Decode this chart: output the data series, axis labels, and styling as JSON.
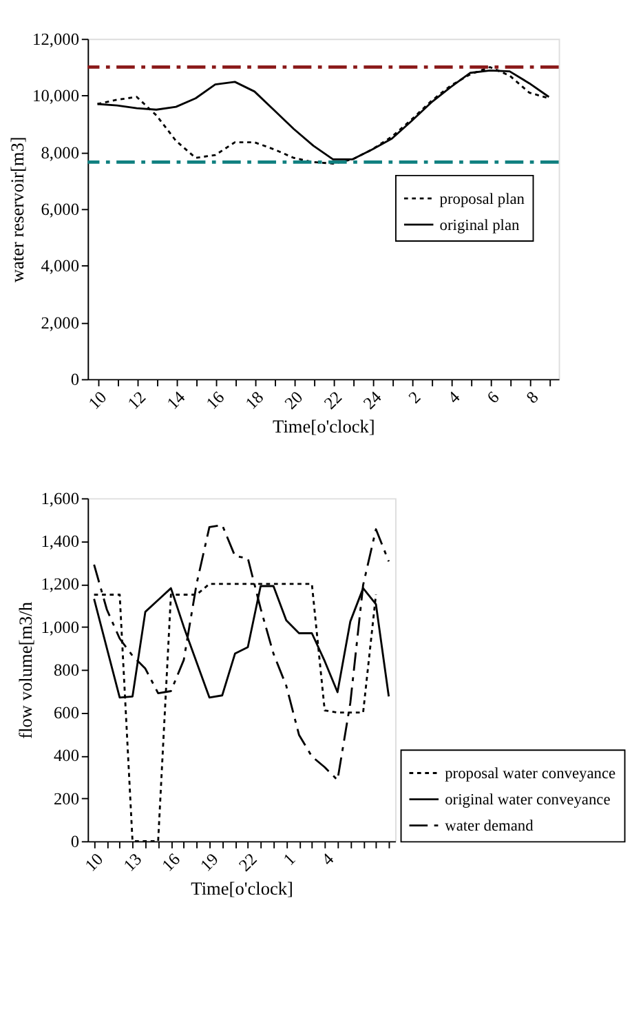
{
  "chart_data": [
    {
      "type": "line",
      "xlabel": "Time[o'clock]",
      "ylabel": "water reservoir[m3]",
      "categories": [
        "10",
        null,
        "12",
        null,
        "14",
        null,
        "16",
        null,
        "18",
        null,
        "20",
        null,
        "22",
        null,
        "24",
        null,
        "2",
        null,
        "4",
        null,
        "6",
        null,
        "8",
        null
      ],
      "series": [
        {
          "name": "proposal plan",
          "color": "#000000",
          "line_style": "dotted",
          "values": [
            9700,
            9850,
            9950,
            9300,
            8400,
            7800,
            7900,
            8350,
            8350,
            8100,
            7800,
            7650,
            7600,
            7750,
            8100,
            8550,
            9150,
            9800,
            10350,
            10750,
            11000,
            10700,
            10100,
            9900
          ]
        },
        {
          "name": "original plan",
          "color": "#000000",
          "line_style": "solid",
          "values": [
            9700,
            9650,
            9550,
            9500,
            9600,
            9900,
            10390,
            10480,
            10140,
            9480,
            8820,
            8230,
            7750,
            7750,
            8100,
            8480,
            9100,
            9750,
            10300,
            10800,
            10880,
            10850,
            10430,
            9950
          ]
        }
      ],
      "ref_lines": [
        {
          "axis": "y",
          "value": 11000,
          "color": "#8b1a1a",
          "line_style": "dashed"
        },
        {
          "axis": "y",
          "value": 7650,
          "color": "#108080",
          "line_style": "dashed"
        }
      ],
      "ylim": [
        0,
        12000
      ],
      "yticks": [
        0,
        {
          "value": 2000,
          "label": "2,000"
        },
        {
          "value": 4000,
          "label": "4,000"
        },
        {
          "value": 6000,
          "label": "6,000"
        },
        {
          "value": 8000,
          "label": "8,000"
        },
        {
          "value": 10000,
          "label": "10,000"
        },
        {
          "value": 12000,
          "label": "12,000"
        }
      ],
      "grid": false,
      "legend": "right"
    },
    {
      "type": "line",
      "xlabel": "Time[o'clock]",
      "ylabel": "flow volume[m3/h",
      "categories": [
        "10",
        null,
        null,
        "13",
        null,
        null,
        "16",
        null,
        null,
        "19",
        null,
        null,
        "22",
        null,
        null,
        "1",
        null,
        null,
        "4",
        null,
        null,
        null,
        null,
        null
      ],
      "series": [
        {
          "name": "proposal water conveyance",
          "color": "#000000",
          "line_style": "dotted",
          "values": [
            1150,
            1150,
            1150,
            0,
            0,
            0,
            1150,
            1150,
            1150,
            1200,
            1200,
            1200,
            1200,
            1200,
            1200,
            1200,
            1200,
            1200,
            610,
            600,
            600,
            600,
            1150,
            null
          ]
        },
        {
          "name": "original water conveyance",
          "color": "#000000",
          "line_style": "solid",
          "values": [
            1130,
            900,
            670,
            675,
            1070,
            1125,
            1180,
            1000,
            835,
            670,
            680,
            875,
            905,
            1190,
            1190,
            1030,
            970,
            970,
            840,
            695,
            1025,
            1180,
            1105,
            675
          ]
        },
        {
          "name": "water demand",
          "color": "#000000",
          "line_style": "dashed",
          "values": [
            1290,
            1080,
            945,
            865,
            805,
            690,
            700,
            845,
            1200,
            1465,
            1475,
            1330,
            1320,
            1085,
            875,
            725,
            495,
            395,
            345,
            285,
            645,
            1195,
            1455,
            1305
          ]
        }
      ],
      "ylim": [
        0,
        1600
      ],
      "yticks": [
        0,
        200,
        400,
        600,
        800,
        {
          "value": 1000,
          "label": "1,000"
        },
        {
          "value": 1200,
          "label": "1,200"
        },
        {
          "value": 1400,
          "label": "1,400"
        },
        {
          "value": 1600,
          "label": "1,600"
        }
      ],
      "grid": false,
      "legend": "bottom right"
    }
  ]
}
